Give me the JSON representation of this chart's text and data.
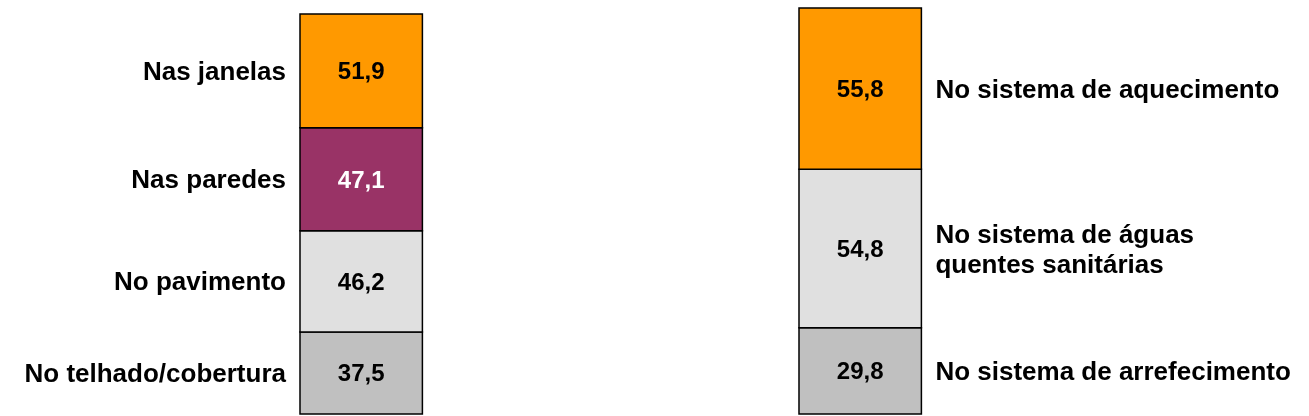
{
  "chart_data": [
    {
      "type": "bar",
      "stacked": true,
      "categories": [
        null
      ],
      "series": [
        {
          "name": "No telhado/cobertura",
          "color": "#c0c0c0",
          "values": [
            37.5
          ],
          "value_labels": [
            "37,5"
          ]
        },
        {
          "name": "No pavimento",
          "color": "#e0e0e0",
          "values": [
            46.2
          ],
          "value_labels": [
            "46,2"
          ]
        },
        {
          "name": "Nas paredes",
          "color": "#993366",
          "values": [
            47.1
          ],
          "value_labels": [
            "47,1"
          ]
        },
        {
          "name": "Nas janelas",
          "color": "#ff9900",
          "values": [
            51.9
          ],
          "value_labels": [
            "51,9"
          ]
        }
      ]
    },
    {
      "type": "bar",
      "stacked": true,
      "categories": [
        null
      ],
      "series": [
        {
          "name": "No sistema de arrefecimento",
          "color": "#c0c0c0",
          "values": [
            29.8
          ],
          "value_labels": [
            "29,8"
          ]
        },
        {
          "name": "No sistema de águas\nquentes sanitárias",
          "color": "#e0e0e0",
          "values": [
            54.8
          ],
          "value_labels": [
            "54,8"
          ]
        },
        {
          "name": "No sistema de aquecimento",
          "color": "#ff9900",
          "values": [
            55.8
          ],
          "value_labels": [
            "55,8"
          ]
        }
      ]
    }
  ]
}
